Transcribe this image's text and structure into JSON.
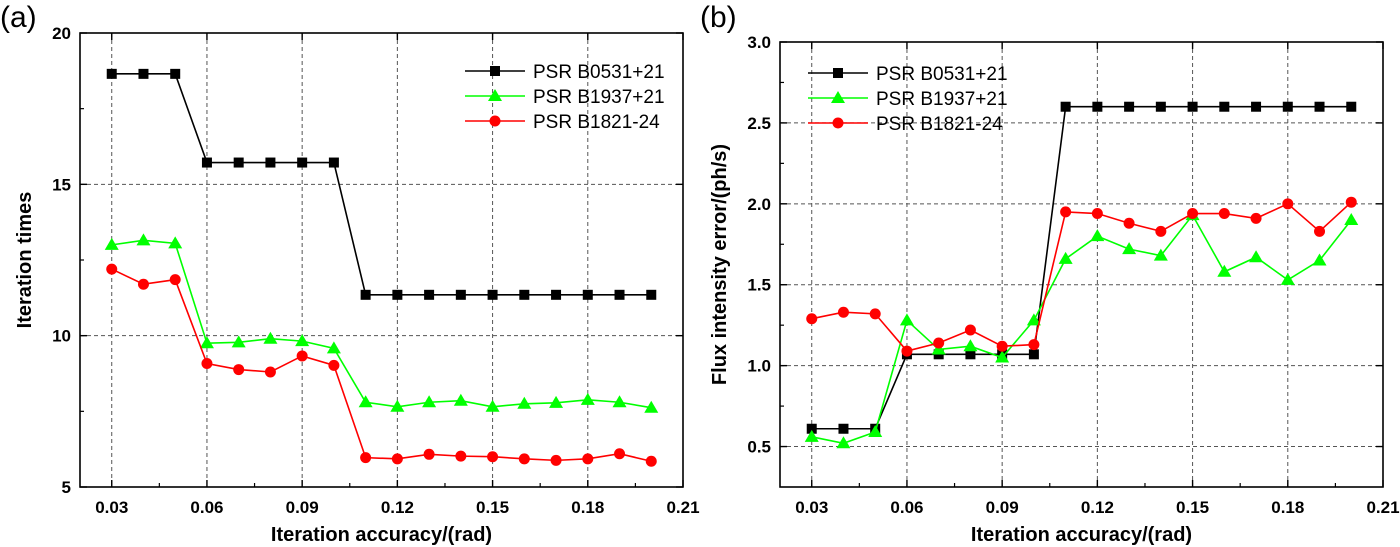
{
  "chart_data": [
    {
      "type": "line",
      "panel_label": "(a)",
      "xlabel": "Iteration accuracy/(rad)",
      "ylabel": "Iteration times",
      "xlim": [
        0.02,
        0.21
      ],
      "ylim": [
        5,
        20
      ],
      "x_ticks": [
        0.03,
        0.06,
        0.09,
        0.12,
        0.15,
        0.18,
        0.21
      ],
      "x_tick_labels": [
        "0.03",
        "0.06",
        "0.09",
        "0.12",
        "0.15",
        "0.18",
        "0.21"
      ],
      "y_ticks": [
        5,
        10,
        15,
        20
      ],
      "y_tick_labels": [
        "5",
        "10",
        "15",
        "20"
      ],
      "grid": true,
      "legend_position": "top-right",
      "x": [
        0.03,
        0.04,
        0.05,
        0.06,
        0.07,
        0.08,
        0.09,
        0.1,
        0.11,
        0.12,
        0.13,
        0.14,
        0.15,
        0.16,
        0.17,
        0.18,
        0.19,
        0.2
      ],
      "series": [
        {
          "name": "PSR B0531+21",
          "color": "#000000",
          "marker": "square",
          "values": [
            18.65,
            18.65,
            18.65,
            15.72,
            15.72,
            15.72,
            15.72,
            15.72,
            11.35,
            11.35,
            11.35,
            11.35,
            11.35,
            11.35,
            11.35,
            11.35,
            11.35,
            11.35
          ]
        },
        {
          "name": "PSR B1937+21",
          "color": "#00ff00",
          "marker": "triangle",
          "values": [
            13.0,
            13.15,
            13.05,
            9.75,
            9.78,
            9.9,
            9.82,
            9.58,
            7.8,
            7.65,
            7.8,
            7.85,
            7.65,
            7.75,
            7.78,
            7.88,
            7.8,
            7.62
          ]
        },
        {
          "name": "PSR B1821-24",
          "color": "#ff0000",
          "marker": "circle",
          "values": [
            12.2,
            11.7,
            11.85,
            9.08,
            8.88,
            8.8,
            9.33,
            9.02,
            5.97,
            5.93,
            6.08,
            6.02,
            6.0,
            5.93,
            5.88,
            5.93,
            6.1,
            5.85
          ]
        }
      ]
    },
    {
      "type": "line",
      "panel_label": "(b)",
      "xlabel": "Iteration accuracy/(rad)",
      "ylabel": "Flux intensity error/(ph/s)",
      "xlim": [
        0.02,
        0.21
      ],
      "ylim": [
        0.25,
        3.0
      ],
      "x_ticks": [
        0.03,
        0.06,
        0.09,
        0.12,
        0.15,
        0.18,
        0.21
      ],
      "x_tick_labels": [
        "0.03",
        "0.06",
        "0.09",
        "0.12",
        "0.15",
        "0.18",
        "0.21"
      ],
      "y_ticks": [
        0.5,
        1.0,
        1.5,
        2.0,
        2.5,
        3.0
      ],
      "y_tick_labels": [
        "0.5",
        "1.0",
        "1.5",
        "2.0",
        "2.5",
        "3.0"
      ],
      "grid": true,
      "legend_position": "top-left",
      "x": [
        0.03,
        0.04,
        0.05,
        0.06,
        0.07,
        0.08,
        0.09,
        0.1,
        0.11,
        0.12,
        0.13,
        0.14,
        0.15,
        0.16,
        0.17,
        0.18,
        0.19,
        0.2
      ],
      "series": [
        {
          "name": "PSR B0531+21",
          "color": "#000000",
          "marker": "square",
          "values": [
            0.61,
            0.61,
            0.61,
            1.07,
            1.07,
            1.07,
            1.07,
            1.07,
            2.6,
            2.6,
            2.6,
            2.6,
            2.6,
            2.6,
            2.6,
            2.6,
            2.6,
            2.6
          ]
        },
        {
          "name": "PSR B1937+21",
          "color": "#00ff00",
          "marker": "triangle",
          "values": [
            0.56,
            0.52,
            0.59,
            1.28,
            1.1,
            1.12,
            1.05,
            1.28,
            1.66,
            1.8,
            1.72,
            1.68,
            1.93,
            1.58,
            1.67,
            1.53,
            1.65,
            1.9
          ]
        },
        {
          "name": "PSR B1821-24",
          "color": "#ff0000",
          "marker": "circle",
          "values": [
            1.29,
            1.33,
            1.32,
            1.09,
            1.14,
            1.22,
            1.12,
            1.13,
            1.95,
            1.94,
            1.88,
            1.83,
            1.94,
            1.94,
            1.91,
            2.0,
            1.83,
            2.01
          ]
        }
      ]
    }
  ]
}
